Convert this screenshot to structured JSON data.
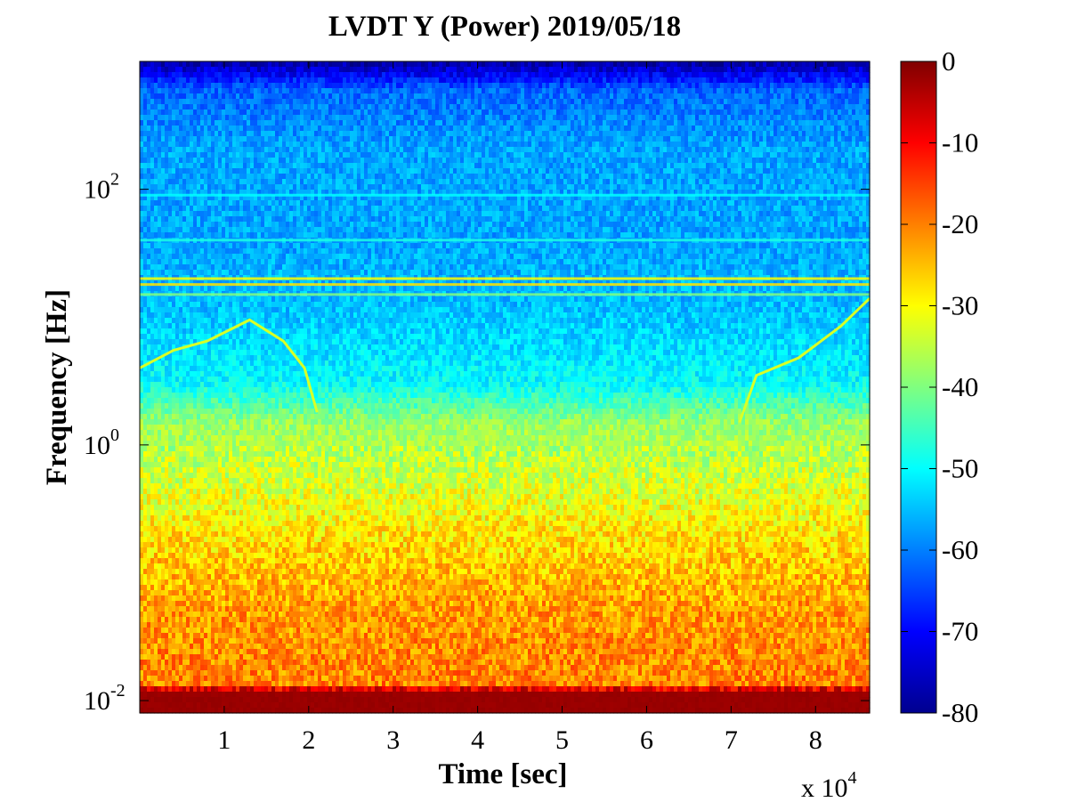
{
  "chart_data": {
    "type": "heatmap",
    "title": "LVDT Y (Power) 2019/05/18",
    "xlabel": "Time [sec]",
    "ylabel": "Frequency [Hz]",
    "x_multiplier": "x 10",
    "x_multiplier_exponent": "4",
    "x_range": [
      0,
      86400
    ],
    "x_ticks": [
      1,
      2,
      3,
      4,
      5,
      6,
      7,
      8
    ],
    "y_scale": "log",
    "y_range": [
      0.008,
      1000
    ],
    "y_ticks": [
      {
        "value": 0.01,
        "base": "10",
        "exp": "-2"
      },
      {
        "value": 1,
        "base": "10",
        "exp": "0"
      },
      {
        "value": 100,
        "base": "10",
        "exp": "2"
      }
    ],
    "colormap": "jet",
    "colorbar_range": [
      -80,
      0
    ],
    "colorbar_ticks": [
      0,
      -10,
      -20,
      -30,
      -40,
      -50,
      -60,
      -70,
      -80
    ],
    "power_profile_db": [
      {
        "freq": 0.008,
        "db": -2
      },
      {
        "freq": 0.012,
        "db": -2
      },
      {
        "freq": 0.013,
        "db": -20
      },
      {
        "freq": 0.05,
        "db": -22
      },
      {
        "freq": 0.2,
        "db": -28
      },
      {
        "freq": 0.5,
        "db": -33
      },
      {
        "freq": 1.5,
        "db": -38
      },
      {
        "freq": 3,
        "db": -50
      },
      {
        "freq": 12,
        "db": -55
      },
      {
        "freq": 40,
        "db": -57
      },
      {
        "freq": 200,
        "db": -57
      },
      {
        "freq": 600,
        "db": -62
      },
      {
        "freq": 1000,
        "db": -78
      }
    ],
    "lines": [
      {
        "freq": 20,
        "db": -30
      },
      {
        "freq": 18,
        "db": -28
      },
      {
        "freq": 15,
        "db": -40
      },
      {
        "freq": 40,
        "db": -48
      },
      {
        "freq": 90,
        "db": -50
      }
    ],
    "tracks": [
      {
        "x": [
          0,
          4000,
          8000,
          13000,
          17000,
          19500,
          21000
        ],
        "freq": [
          4,
          5.5,
          6.5,
          9.5,
          6.5,
          4,
          1.8
        ],
        "db": -33
      },
      {
        "x": [
          71000,
          73000,
          78000,
          83000,
          86400
        ],
        "freq": [
          1.5,
          3.5,
          4.8,
          8.5,
          14
        ],
        "db": -33
      }
    ]
  }
}
